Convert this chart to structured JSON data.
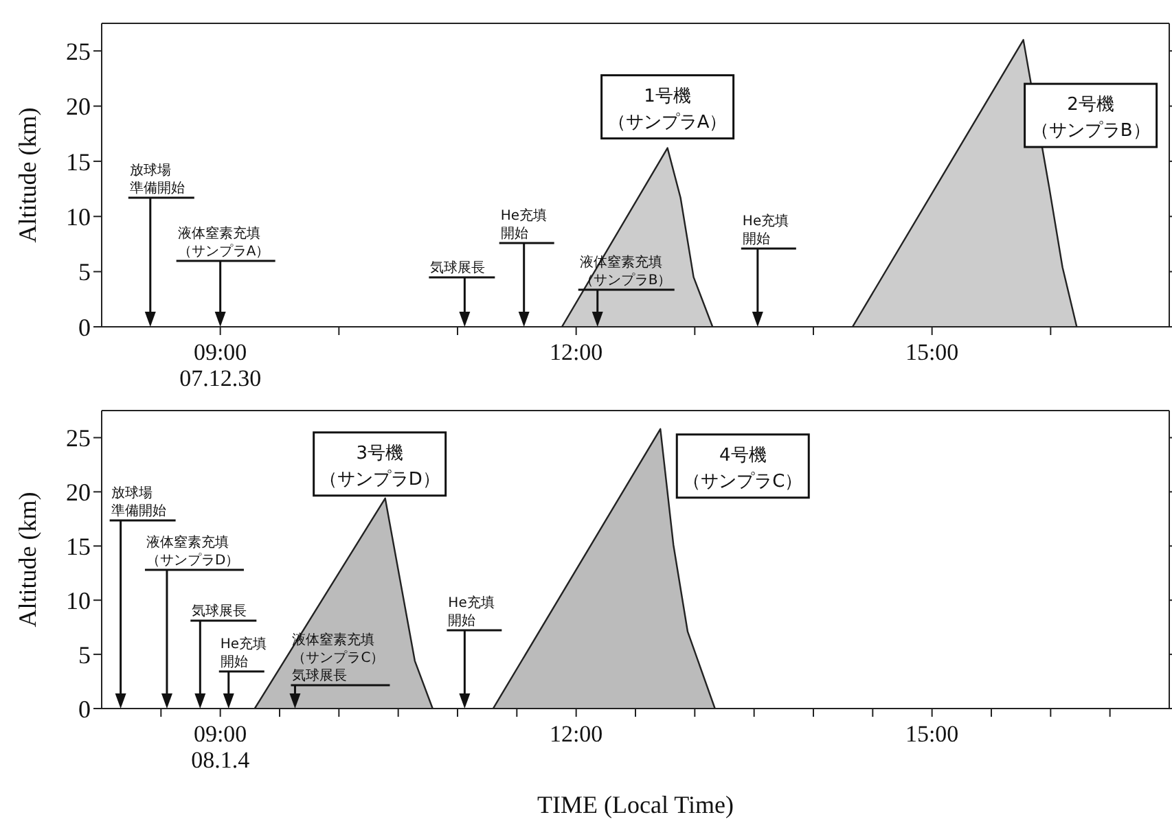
{
  "chart_data": [
    {
      "type": "area",
      "ylabel": "Altitude (km)",
      "xlim": [
        8,
        17
      ],
      "ylim": [
        0,
        27.5
      ],
      "yticks": [
        0,
        5,
        10,
        15,
        20,
        25
      ],
      "xticks": [
        {
          "value": 9,
          "label": "09:00\n07.12.30"
        },
        {
          "value": 10,
          "label": null
        },
        {
          "value": 11,
          "label": null
        },
        {
          "value": 12,
          "label": "12:00"
        },
        {
          "value": 13,
          "label": null
        },
        {
          "value": 14,
          "label": null
        },
        {
          "value": 15,
          "label": "15:00"
        },
        {
          "value": 16,
          "label": null
        }
      ],
      "series": [
        {
          "name": "1号機（サンプラA）",
          "color": "#cccccc",
          "x": [
            11.88,
            12.77,
            12.88,
            12.99,
            13.15
          ],
          "values": [
            0,
            16.2,
            11.7,
            4.5,
            0
          ]
        },
        {
          "name": "2号機（サンプラB）",
          "color": "#cccccc",
          "x": [
            14.33,
            15.77,
            15.99,
            16.1,
            16.22
          ],
          "values": [
            0,
            26,
            12.5,
            5.4,
            0
          ]
        }
      ],
      "annotations": [
        "放球場準備開始",
        "液体窒素充填（サンプラA）",
        "気球展長",
        "He充填開始",
        "液体窒素充填（サンプラB）",
        "He充填開始"
      ]
    },
    {
      "type": "area",
      "ylabel": "Altitude (km)",
      "xlabel": "TIME (Local Time)",
      "xlim": [
        8,
        17
      ],
      "ylim": [
        0,
        27.5
      ],
      "yticks": [
        0,
        5,
        10,
        15,
        20,
        25
      ],
      "xticks": [
        {
          "value": 8.5,
          "label": null
        },
        {
          "value": 9,
          "label": "09:00\n08.1.4"
        },
        {
          "value": 9.5,
          "label": null
        },
        {
          "value": 10,
          "label": null
        },
        {
          "value": 10.5,
          "label": null
        },
        {
          "value": 11,
          "label": null
        },
        {
          "value": 11.5,
          "label": null
        },
        {
          "value": 12,
          "label": "12:00"
        },
        {
          "value": 12.5,
          "label": null
        },
        {
          "value": 13,
          "label": null
        },
        {
          "value": 13.5,
          "label": null
        },
        {
          "value": 14,
          "label": null
        },
        {
          "value": 14.5,
          "label": null
        },
        {
          "value": 15,
          "label": "15:00"
        },
        {
          "value": 15.5,
          "label": null
        },
        {
          "value": 16,
          "label": null
        },
        {
          "value": 16.5,
          "label": null
        }
      ],
      "series": [
        {
          "name": "3号機（サンプラD）",
          "color": "#bbbbbb",
          "x": [
            9.29,
            10.39,
            10.64,
            10.79
          ],
          "values": [
            0,
            19.4,
            4.4,
            0
          ]
        },
        {
          "name": "4号機（サンプラC）",
          "color": "#bbbbbb",
          "x": [
            11.3,
            12.71,
            12.82,
            12.94,
            13.17
          ],
          "values": [
            0,
            25.8,
            15.1,
            7.1,
            0
          ]
        }
      ],
      "annotations": [
        "放球場準備開始",
        "液体窒素充填（サンプラD）",
        "気球展長",
        "He充填開始",
        "液体窒素充填（サンプラC）気球展長",
        "He充填開始"
      ]
    }
  ]
}
